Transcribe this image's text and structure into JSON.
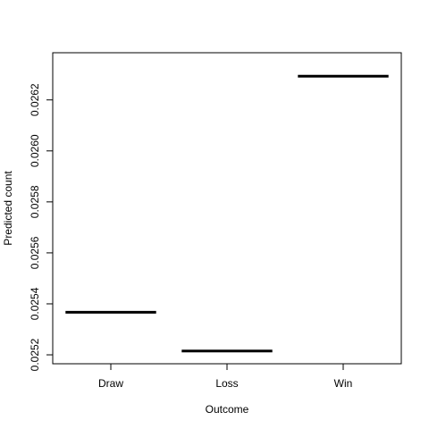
{
  "chart_data": {
    "type": "line",
    "xlabel": "Outcome",
    "ylabel": "Predicted count",
    "categories": [
      "Draw",
      "Loss",
      "Win"
    ],
    "values": [
      0.025367,
      0.025215,
      0.026293
    ],
    "ylim": [
      0.025165,
      0.026385
    ],
    "yticks": [
      0.0252,
      0.0254,
      0.0256,
      0.0258,
      0.026,
      0.0262
    ],
    "ytick_labels": [
      "0.0252",
      "0.0254",
      "0.0256",
      "0.0258",
      "0.0260",
      "0.0262"
    ],
    "grid": false,
    "legend": "none",
    "colors": {
      "mark": "#000000",
      "axis": "#000000"
    }
  }
}
